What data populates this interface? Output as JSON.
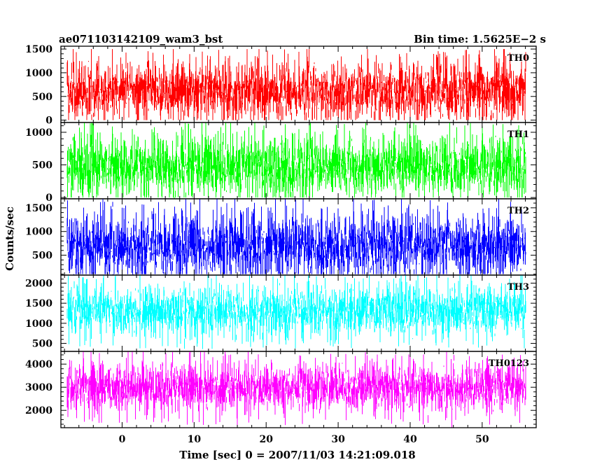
{
  "header": {
    "title": "ae071103142109_wam3_bst",
    "bin_time": "Bin time: 1.5625E−2 s"
  },
  "chart_data": {
    "type": "line",
    "xlabel": "Time [sec] 0 = 2007/11/03 14:21:09.018",
    "ylabel": "Counts/sec",
    "xlim": [
      -8.5,
      57.5
    ],
    "data_x_range": [
      -7.6,
      56.0
    ],
    "x_ticks": [
      0,
      10,
      20,
      30,
      40,
      50
    ],
    "panels": [
      {
        "name": "TH0",
        "color": "#ff0000",
        "ylim": [
          -50,
          1560
        ],
        "y_ticks": [
          0,
          500,
          1000,
          1500
        ],
        "y_tick_labels": [
          "0",
          "500",
          "1000",
          "1500"
        ],
        "mean": 620,
        "low": 0,
        "high": 1500
      },
      {
        "name": "TH1",
        "color": "#00ff00",
        "ylim": [
          -20,
          1150
        ],
        "y_ticks": [
          0,
          500,
          1000
        ],
        "y_tick_labels": [
          "0",
          "500",
          "1000"
        ],
        "mean": 480,
        "low": 0,
        "high": 1150
      },
      {
        "name": "TH2",
        "color": "#0000ff",
        "ylim": [
          80,
          1690
        ],
        "y_ticks": [
          500,
          1000,
          1500
        ],
        "y_tick_labels": [
          "500",
          "1000",
          "1500"
        ],
        "mean": 700,
        "low": 100,
        "high": 1690
      },
      {
        "name": "TH3",
        "color": "#00ffff",
        "ylim": [
          300,
          2200
        ],
        "y_ticks": [
          500,
          1000,
          1500,
          2000
        ],
        "y_tick_labels": [
          "500",
          "1000",
          "1500",
          "2000"
        ],
        "mean": 1300,
        "low": 350,
        "high": 2200
      },
      {
        "name": "TH0123",
        "color": "#ff00ff",
        "ylim": [
          1250,
          4550
        ],
        "y_ticks": [
          2000,
          3000,
          4000
        ],
        "y_tick_labels": [
          "2000",
          "3000",
          "4000"
        ],
        "mean": 3000,
        "low": 1250,
        "high": 4550
      }
    ]
  }
}
